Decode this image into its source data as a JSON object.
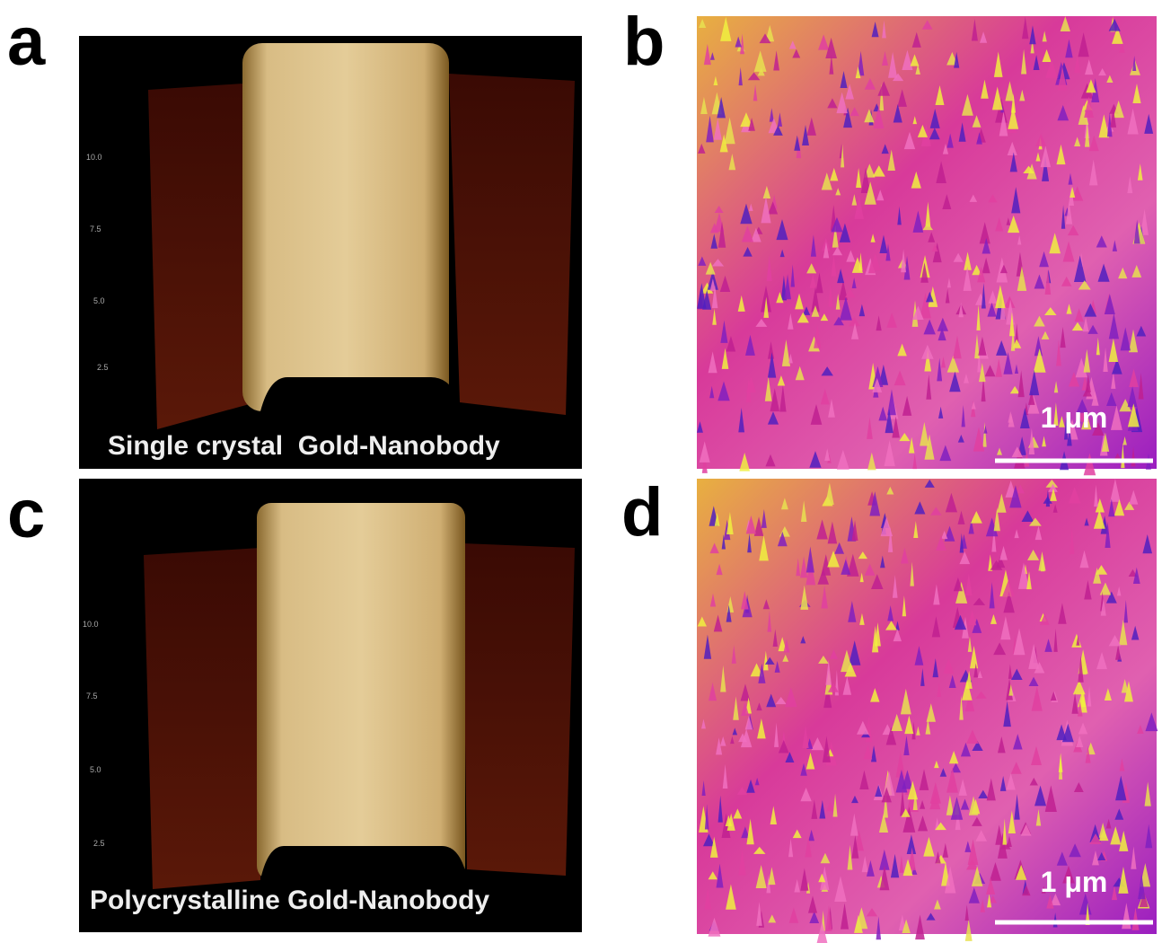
{
  "panels": [
    {
      "label": "a",
      "caption": "Single crystal  Gold-Nanobody",
      "axis_labels": [
        "10.0",
        "7.5",
        "5.0",
        "2.5"
      ]
    },
    {
      "label": "b",
      "scale_bar": "1 μm"
    },
    {
      "label": "c",
      "caption": "Polycrystalline Gold-Nanobody",
      "axis_labels": [
        "10.0",
        "7.5",
        "5.0",
        "2.5"
      ]
    },
    {
      "label": "d",
      "scale_bar": "1 μm"
    }
  ]
}
